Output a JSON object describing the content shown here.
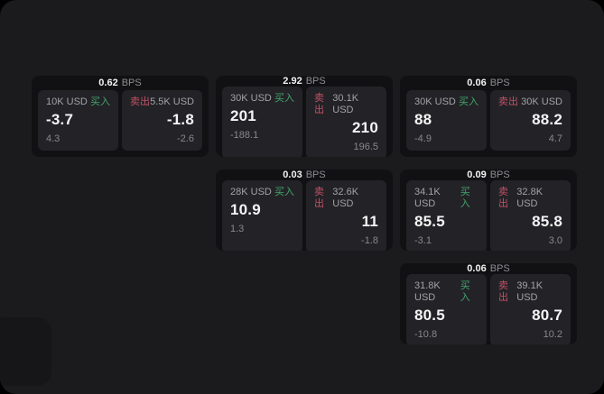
{
  "labels": {
    "bps": "BPS",
    "buy": "买入",
    "sell": "卖出"
  },
  "colors": {
    "outer_bg": "#000000",
    "panel_bg": "#1b1b1d",
    "card_bg": "#111113",
    "tile_bg": "#232327",
    "text_primary": "#f4f4f5",
    "text_secondary": "#a2a2a7",
    "text_dim": "#87878c",
    "buy_green": "#44a46c",
    "sell_red": "#c25066"
  },
  "cards": [
    {
      "bps": "0.62",
      "buy": {
        "notional": "10K USD",
        "value": "-3.7",
        "delta": "4.3"
      },
      "sell": {
        "notional": "5.5K USD",
        "value": "-1.8",
        "delta": "-2.6"
      }
    },
    {
      "bps": "2.92",
      "buy": {
        "notional": "30K USD",
        "value": "201",
        "delta": "-188.1"
      },
      "sell": {
        "notional": "30.1K USD",
        "value": "210",
        "delta": "196.5"
      }
    },
    {
      "bps": "0.06",
      "buy": {
        "notional": "30K USD",
        "value": "88",
        "delta": "-4.9"
      },
      "sell": {
        "notional": "30K USD",
        "value": "88.2",
        "delta": "4.7"
      }
    },
    {
      "bps": "0.03",
      "buy": {
        "notional": "28K USD",
        "value": "10.9",
        "delta": "1.3"
      },
      "sell": {
        "notional": "32.6K USD",
        "value": "11",
        "delta": "-1.8"
      }
    },
    {
      "bps": "0.09",
      "buy": {
        "notional": "34.1K USD",
        "value": "85.5",
        "delta": "-3.1"
      },
      "sell": {
        "notional": "32.8K USD",
        "value": "85.8",
        "delta": "3.0"
      }
    },
    {
      "bps": "0.06",
      "buy": {
        "notional": "31.8K USD",
        "value": "80.5",
        "delta": "-10.8"
      },
      "sell": {
        "notional": "39.1K USD",
        "value": "80.7",
        "delta": "10.2"
      }
    }
  ]
}
